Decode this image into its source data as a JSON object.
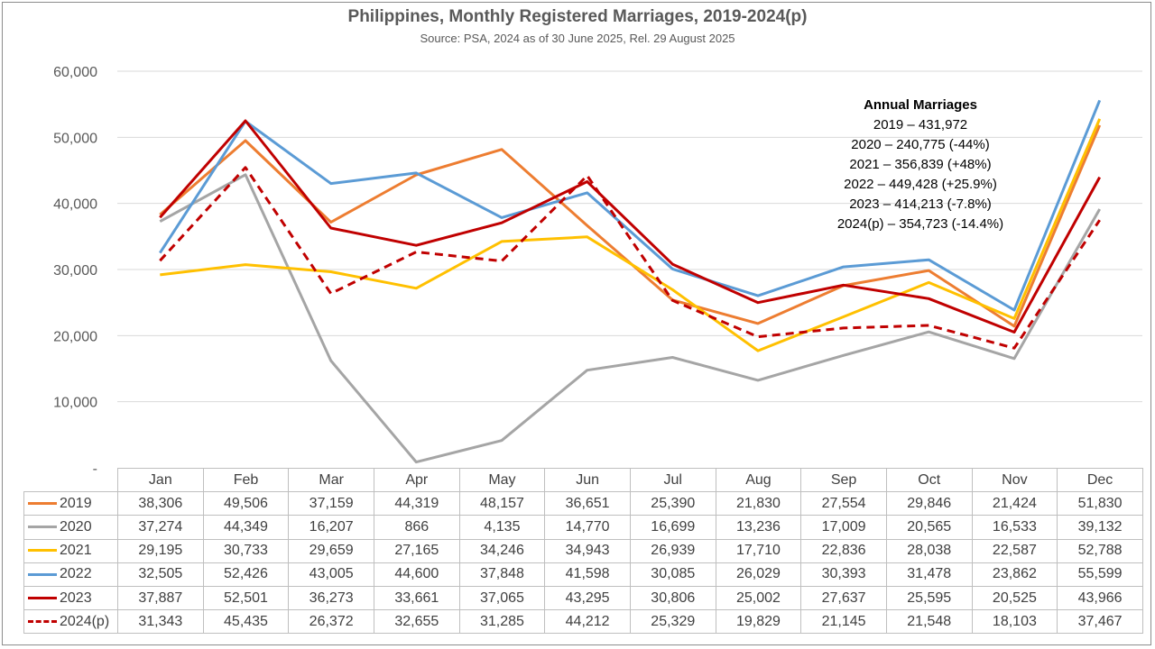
{
  "chart_data": {
    "type": "line",
    "title": "Philippines, Monthly Registered Marriages, 2019-2024(p)",
    "subtitle": "Source: PSA, 2024 as of 30 June 2025, Rel. 29 August 2025",
    "xlabel": "",
    "ylabel": "",
    "ylim": [
      0,
      60000
    ],
    "y_ticks": [
      0,
      10000,
      20000,
      30000,
      40000,
      50000,
      60000
    ],
    "y_tick_labels": [
      "-",
      "10,000",
      "20,000",
      "30,000",
      "40,000",
      "50,000",
      "60,000"
    ],
    "grid": true,
    "categories": [
      "Jan",
      "Feb",
      "Mar",
      "Apr",
      "May",
      "Jun",
      "Jul",
      "Aug",
      "Sep",
      "Oct",
      "Nov",
      "Dec"
    ],
    "series": [
      {
        "name": "2019",
        "color": "#ed7d31",
        "dashed": false,
        "values": [
          38306,
          49506,
          37159,
          44319,
          48157,
          36651,
          25390,
          21830,
          27554,
          29846,
          21424,
          51830
        ],
        "labels": [
          "38,306",
          "49,506",
          "37,159",
          "44,319",
          "48,157",
          "36,651",
          "25,390",
          "21,830",
          "27,554",
          "29,846",
          "21,424",
          "51,830"
        ]
      },
      {
        "name": "2020",
        "color": "#a5a5a5",
        "dashed": false,
        "values": [
          37274,
          44349,
          16207,
          866,
          4135,
          14770,
          16699,
          13236,
          17009,
          20565,
          16533,
          39132
        ],
        "labels": [
          "37,274",
          "44,349",
          "16,207",
          "866",
          "4,135",
          "14,770",
          "16,699",
          "13,236",
          "17,009",
          "20,565",
          "16,533",
          "39,132"
        ]
      },
      {
        "name": "2021",
        "color": "#ffc000",
        "dashed": false,
        "values": [
          29195,
          30733,
          29659,
          27165,
          34246,
          34943,
          26939,
          17710,
          22836,
          28038,
          22587,
          52788
        ],
        "labels": [
          "29,195",
          "30,733",
          "29,659",
          "27,165",
          "34,246",
          "34,943",
          "26,939",
          "17,710",
          "22,836",
          "28,038",
          "22,587",
          "52,788"
        ]
      },
      {
        "name": "2022",
        "color": "#5b9bd5",
        "dashed": false,
        "values": [
          32505,
          52426,
          43005,
          44600,
          37848,
          41598,
          30085,
          26029,
          30393,
          31478,
          23862,
          55599
        ],
        "labels": [
          "32,505",
          "52,426",
          "43,005",
          "44,600",
          "37,848",
          "41,598",
          "30,085",
          "26,029",
          "30,393",
          "31,478",
          "23,862",
          "55,599"
        ]
      },
      {
        "name": "2023",
        "color": "#c00000",
        "dashed": false,
        "values": [
          37887,
          52501,
          36273,
          33661,
          37065,
          43295,
          30806,
          25002,
          27637,
          25595,
          20525,
          43966
        ],
        "labels": [
          "37,887",
          "52,501",
          "36,273",
          "33,661",
          "37,065",
          "43,295",
          "30,806",
          "25,002",
          "27,637",
          "25,595",
          "20,525",
          "43,966"
        ]
      },
      {
        "name": "2024(p)",
        "color": "#c00000",
        "dashed": true,
        "values": [
          31343,
          45435,
          26372,
          32655,
          31285,
          44212,
          25329,
          19829,
          21145,
          21548,
          18103,
          37467
        ],
        "labels": [
          "31,343",
          "45,435",
          "26,372",
          "32,655",
          "31,285",
          "44,212",
          "25,329",
          "19,829",
          "21,145",
          "21,548",
          "18,103",
          "37,467"
        ]
      }
    ],
    "annotation": {
      "heading": "Annual Marriages",
      "lines": [
        "2019 – 431,972",
        "2020 – 240,775 (-44%)",
        "2021 – 356,839 (+48%)",
        "2022 – 449,428 (+25.9%)",
        "2023 – 414,213 (-7.8%)",
        "2024(p) – 354,723 (-14.4%)"
      ]
    }
  }
}
